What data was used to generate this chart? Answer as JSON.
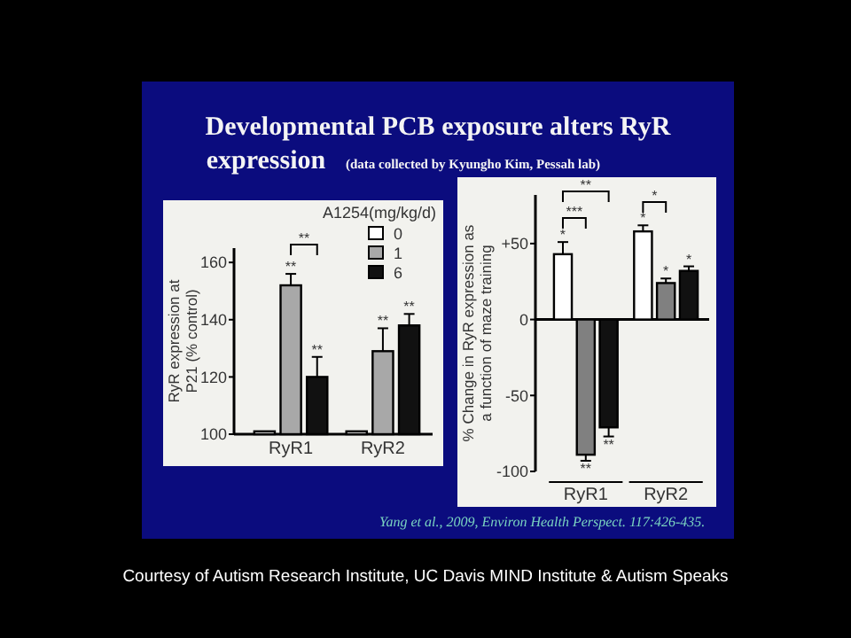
{
  "chart_data": [
    {
      "type": "bar",
      "title": "Developmental PCB exposure alters RyR expression",
      "subtitle": "(data collected by Kyungho Kim, Pessah lab)",
      "ylabel": "RyR expression at P21 (% control)",
      "legend_title": "A1254(mg/kg/d)",
      "legend": "top right",
      "categories": [
        "RyR1",
        "RyR2"
      ],
      "ylim": [
        100,
        165
      ],
      "yticks": [
        100,
        120,
        140,
        160
      ],
      "series": [
        {
          "name": "0",
          "color": "#ffffff",
          "values": [
            101,
            101
          ]
        },
        {
          "name": "1",
          "color": "#a8a8a8",
          "values": [
            152,
            129
          ],
          "errors": [
            4,
            8
          ],
          "value_labels": [
            "**",
            "**"
          ]
        },
        {
          "name": "6",
          "color": "#111111",
          "values": [
            120,
            138
          ],
          "errors": [
            7,
            4
          ],
          "value_labels": [
            "**",
            "**"
          ]
        }
      ],
      "annotations": [
        "**"
      ]
    },
    {
      "type": "bar",
      "ylabel": "% Change in RyR expression as a function of maze training",
      "categories": [
        "RyR1",
        "RyR2"
      ],
      "ylim": [
        -100,
        82
      ],
      "yticks": [
        -100,
        -50,
        0,
        {
          "value": 50,
          "label": "+50"
        }
      ],
      "series": [
        {
          "color": "#ffffff",
          "values": [
            43,
            58
          ],
          "errors": [
            8,
            4
          ],
          "value_labels": [
            "*",
            "*"
          ]
        },
        {
          "color": "#808080",
          "values": [
            -89,
            24
          ],
          "errors": [
            4,
            3
          ],
          "value_labels": [
            "**",
            "*"
          ]
        },
        {
          "color": "#111111",
          "values": [
            -71,
            32
          ],
          "errors": [
            6,
            3
          ],
          "value_labels": [
            "**",
            "*"
          ]
        }
      ],
      "annotations": [
        "**",
        "***",
        "*",
        "Yang et al., 2009, Environ Health Perspect. 117:426-435.",
        "Courtesy of Autism Research Institute, UC Davis MIND Institute & Autism Speaks"
      ]
    }
  ]
}
